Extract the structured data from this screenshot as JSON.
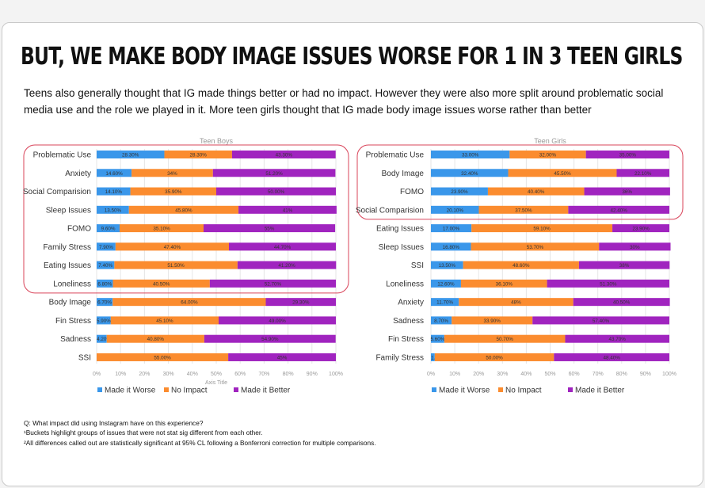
{
  "title": "BUT, WE MAKE BODY IMAGE ISSUES WORSE FOR 1 IN 3 TEEN GIRLS",
  "subtitle": "Teens also generally thought that IG made things better or had no impact. However they were also more split around problematic social media use and the role we played in it. More teen girls thought that IG made body image issues worse rather than better",
  "notes": [
    "Q: What impact did using Instagram have on this experience?",
    "¹Buckets highlight groups of issues that were not stat sig different from each other.",
    "²All differences called out are statistically significant at 95% CL following a Bonferroni correction for multiple comparisons."
  ],
  "colors": {
    "Made it Worse": "#3a97ea",
    "No Impact": "#fb8c2f",
    "Made it Better": "#a024bf",
    "highlight": "#d9445a"
  },
  "chart_data": [
    {
      "type": "bar",
      "stacked": true,
      "orientation": "horizontal",
      "title": "Teen Boys",
      "xlabel": "Axis Title",
      "xlim": [
        0,
        100
      ],
      "ticks": [
        "0%",
        "10%",
        "20%",
        "30%",
        "40%",
        "50%",
        "60%",
        "70%",
        "80%",
        "90%",
        "100%"
      ],
      "grid": true,
      "legend": "bottom",
      "highlight_rows": [
        0,
        7
      ],
      "categories": [
        "Problematic Use",
        "Anxiety",
        "Social Comparision",
        "Sleep Issues",
        "FOMO",
        "Family Stress",
        "Eating Issues",
        "Loneliness",
        "Body Image",
        "Fin Stress",
        "Sadness",
        "SSI"
      ],
      "series": [
        {
          "name": "Made it Worse",
          "values": [
            28.3,
            14.6,
            14.1,
            13.5,
            9.6,
            7.9,
            7.4,
            6.8,
            6.7,
            5.9,
            4.2,
            0
          ],
          "labels": [
            "28.30%",
            "14.60%",
            "14.10%",
            "13.50%",
            "9.60%",
            "7.90%",
            "7.40%",
            "6.80%",
            "6.70%",
            "5.90%",
            "4.20%",
            "0.00%"
          ]
        },
        {
          "name": "No Impact",
          "values": [
            28.3,
            34,
            35.9,
            45.8,
            35.1,
            47.4,
            51.5,
            40.5,
            64,
            45.1,
            40.8,
            55
          ],
          "labels": [
            "28.30%",
            "34%",
            "35.90%",
            "45.80%",
            "35.10%",
            "47.40%",
            "51.50%",
            "40.50%",
            "64.00%",
            "45.10%",
            "40.80%",
            "55.00%"
          ]
        },
        {
          "name": "Made it Better",
          "values": [
            43.3,
            51.2,
            50,
            41,
            55,
            44.7,
            41.2,
            52.7,
            29.3,
            49,
            54.9,
            45
          ],
          "labels": [
            "43.30%",
            "51.20%",
            "50.00%",
            "41%",
            "55%",
            "44.70%",
            "41.20%",
            "52.70%",
            "29.30%",
            "49.00%",
            "54.90%",
            "45%"
          ]
        }
      ]
    },
    {
      "type": "bar",
      "stacked": true,
      "orientation": "horizontal",
      "title": "Teen Girls",
      "xlim": [
        0,
        100
      ],
      "ticks": [
        "0%",
        "10%",
        "20%",
        "30%",
        "40%",
        "50%",
        "60%",
        "70%",
        "80%",
        "90%",
        "100%"
      ],
      "grid": true,
      "legend": "bottom",
      "highlight_rows": [
        0,
        3
      ],
      "categories": [
        "Problematic Use",
        "Body Image",
        "FOMO",
        "Social Comparision",
        "Eating Issues",
        "Sleep Issues",
        "SSI",
        "Loneliness",
        "Anxiety",
        "Sadness",
        "Fin Stress",
        "Family Stress"
      ],
      "series": [
        {
          "name": "Made it Worse",
          "values": [
            33,
            32.4,
            23.9,
            20.1,
            17,
            16.8,
            13.5,
            12.6,
            11.7,
            8.7,
            5.6,
            1.6
          ],
          "labels": [
            "33.00%",
            "32.40%",
            "23.90%",
            "20.10%",
            "17.00%",
            "16.80%",
            "13.50%",
            "12.60%",
            "11.70%",
            "8.70%",
            "5.60%",
            "1.60%"
          ]
        },
        {
          "name": "No Impact",
          "values": [
            32,
            45.5,
            40.4,
            37.5,
            59.1,
            53.7,
            48.6,
            36.1,
            48,
            33.9,
            50.7,
            50
          ],
          "labels": [
            "32.00%",
            "45.50%",
            "40.40%",
            "37.50%",
            "59.10%",
            "53.70%",
            "48.60%",
            "36.10%",
            "48%",
            "33.90%",
            "50.70%",
            "50.00%"
          ]
        },
        {
          "name": "Made it Better",
          "values": [
            35,
            22.1,
            36,
            42.4,
            23.9,
            30,
            38,
            51.3,
            40.5,
            57.4,
            43.7,
            48.4
          ],
          "labels": [
            "35.00%",
            "22.10%",
            "36%",
            "42.40%",
            "23.90%",
            "30%",
            "38%",
            "51.30%",
            "40.50%",
            "57.40%",
            "43.70%",
            "48.40%"
          ]
        }
      ]
    }
  ]
}
